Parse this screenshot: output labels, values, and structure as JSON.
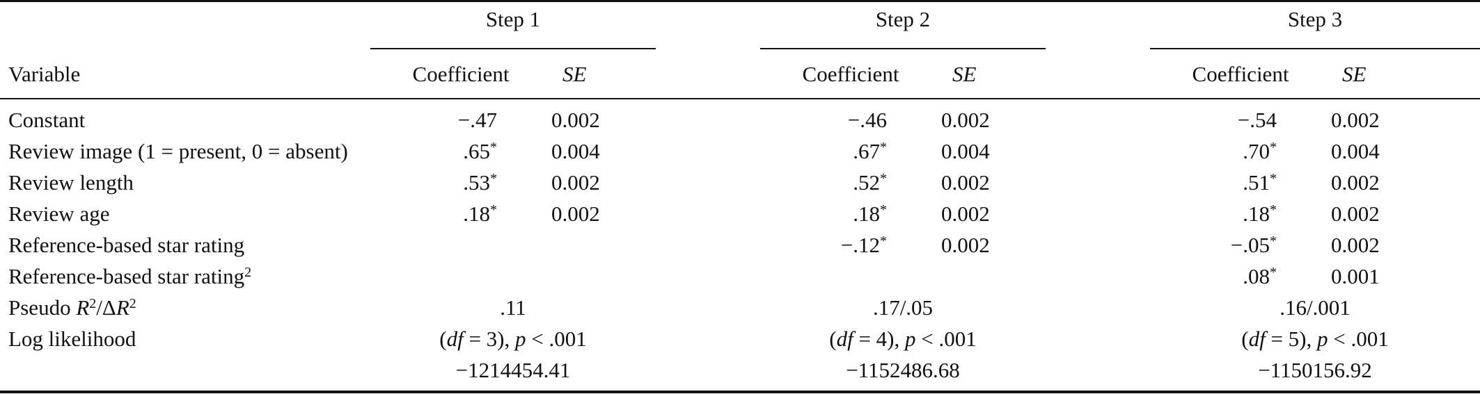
{
  "table": {
    "steps": [
      "Step 1",
      "Step 2",
      "Step 3"
    ],
    "header": {
      "variable": "Variable",
      "coefficient": "Coefficient",
      "se": "SE"
    },
    "rows": [
      {
        "variable": "Constant",
        "cells": [
          [
            "−.47",
            "0.002"
          ],
          [
            "−.46",
            "0.002"
          ],
          [
            "−.54",
            "0.002"
          ]
        ]
      },
      {
        "variable": "Review image (1 = present, 0 = absent)",
        "cells": [
          [
            ".65*",
            "0.004"
          ],
          [
            ".67*",
            "0.004"
          ],
          [
            ".70*",
            "0.004"
          ]
        ]
      },
      {
        "variable": "Review length",
        "cells": [
          [
            ".53*",
            "0.002"
          ],
          [
            ".52*",
            "0.002"
          ],
          [
            ".51*",
            "0.002"
          ]
        ]
      },
      {
        "variable": "Review age",
        "cells": [
          [
            ".18*",
            "0.002"
          ],
          [
            ".18*",
            "0.002"
          ],
          [
            ".18*",
            "0.002"
          ]
        ]
      },
      {
        "variable": "Reference-based star rating",
        "cells": [
          [
            "",
            ""
          ],
          [
            "−.12*",
            "0.002"
          ],
          [
            "−.05*",
            "0.002"
          ]
        ]
      },
      {
        "variable": "Reference-based star rating²",
        "cells": [
          [
            "",
            ""
          ],
          [
            "",
            ""
          ],
          [
            ".08*",
            "0.001"
          ]
        ]
      }
    ],
    "pseudo_r2": {
      "label": "Pseudo R²/ΔR²",
      "values": [
        ".11",
        ".17/.05",
        ".16/.001"
      ]
    },
    "log_likelihood": {
      "label": "Log likelihood",
      "tests": [
        "(df = 3), p < .001",
        "(df = 4), p < .001",
        "(df = 5), p < .001"
      ],
      "values": [
        "−1214454.41",
        "−1152486.68",
        "−1150156.92"
      ]
    }
  }
}
